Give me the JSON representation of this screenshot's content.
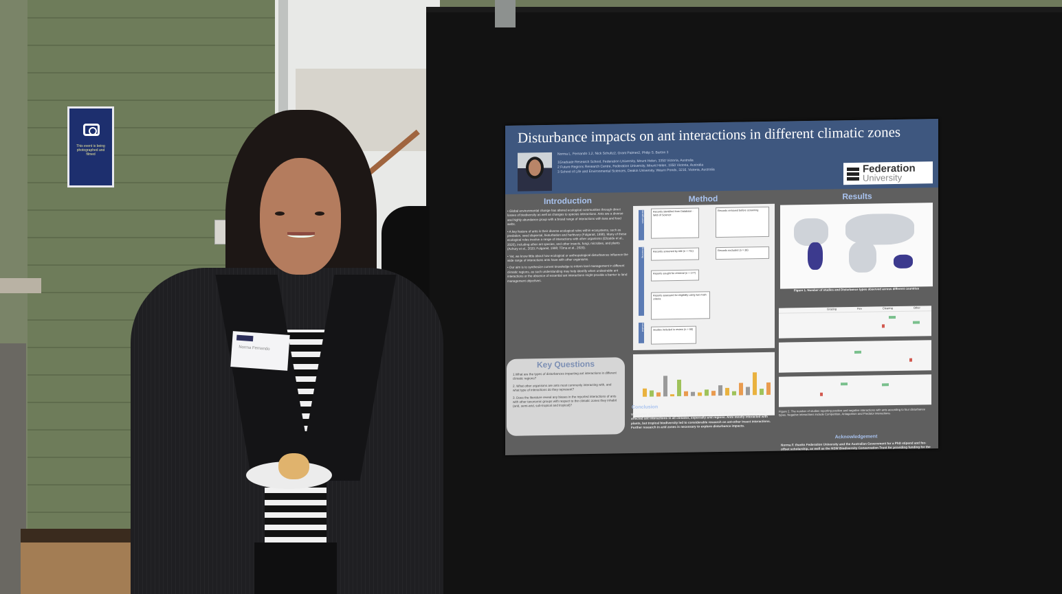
{
  "wall_sign": {
    "icon": "camera-icon",
    "text": "This event is being photographed and filmed"
  },
  "poster": {
    "title": "Disturbance impacts on ant interactions in different climatic zones",
    "authors": "Norma L. Fernando 1,2, Nick Schultz2, Grant Palmer2, Philip S. Barton 3",
    "affiliations": [
      "1Graduate Research School, Federation University, Mount Helen, 3350 Victoria, Australia",
      "2 Future Regions Research Centre, Federation University, Mount Helen, 3350 Victoria, Australia",
      "3 School of Life and Environmental Sciences, Deakin University, Waurn Ponds, 3216, Victoria, Australia"
    ],
    "logo": {
      "line1": "Federation",
      "line2": "University"
    },
    "introduction": {
      "heading": "Introduction",
      "paragraphs": [
        "• Global environmental change has altered ecological communities through direct losses of biodiversity as well as changes to species interactions. Ants are a diverse and highly abundance group with a broad range of interactions with taxa and food webs.",
        "• A key feature of ants is their diverse ecological roles within ecosystems, such as predation, seed dispersal, bioturbation and herbivory (Folgarait, 1998). Many of these ecological roles involve a range of interactions with other organisms (Elizalde et al., 2020), including other ant species, and other insects, fungi, microbes, and plants (Achury et al., 2020; Folgarait, 1998; Tůma et al., 2020).",
        "• Yet, we know little about how ecological or anthropological disturbances influence the wide range of interactions ants have with other organisms.",
        "• Our aim is to synthesize current knowledge to inform land management in different climatic regions, as such understanding may help identify when undesirable ant interactions or the absence of essential ant interactions might provide a barrier to land management objectives."
      ]
    },
    "key_questions": {
      "heading": "Key Questions",
      "items": [
        "1.What are the types of disturbances impacting ant interactions in different climatic regions?",
        "2. What other organisms are ants most commonly interacting with, and what type of interactions do they represent?",
        "3. Does the literature reveal any biases in the reported interactions of ants with other taxonomic groups with respect to the climatic zones they inhabit (arid, semi-arid, sub-tropical and tropical)?"
      ]
    },
    "method": {
      "heading": "Method",
      "side_labels": [
        "Identification",
        "Screening",
        "Included"
      ],
      "boxes": [
        "Records identified from Database - Web of Science",
        "Records removed before screening",
        "Records screened by title (n = 711)",
        "Records excluded (n = 38)",
        "Reports sought for retrieval (n = 177)",
        "Reports assessed for eligibility using two main criteria",
        "Studies included in review (n = 98)"
      ],
      "bar_levels": [
        0.2,
        0.15,
        0.1,
        0.5,
        0.05,
        0.4,
        0.12,
        0.1,
        0.08,
        0.15,
        0.12,
        0.25,
        0.18,
        0.1,
        0.3,
        0.2,
        0.55,
        0.15,
        0.3
      ]
    },
    "conclusion": {
      "heading": "Conclusion",
      "text": "Vegetation clearing mainly disturbed ant-plant interactions in the tropics. Fire and grazing affected ant interactions in all climates, especially arid regions. Ants mostly interacted with plants, but tropical biodiversity led to considerable research on ant-other insect interactions. Further research in arid zones is necessary to explore disturbance impacts."
    },
    "results": {
      "heading": "Results",
      "figure1_caption": "Figure 1. Number of studies and Disturbance types observed across different countries",
      "table_headers": [
        "Grazing",
        "Fire",
        "Clearing",
        "Other"
      ],
      "figure2_caption": "Figure 2. The number of studies reporting positive and negative interactions with ants according to four disturbance types. Negative interactions include Competition, Antagonism and Predator interactions."
    },
    "acknowledgement": {
      "heading": "Acknowledgement",
      "text": "Norma F. thanks Federation University and the Australian Government for a PhD stipend and fee-offset scholarship, as well as the NSW Biodiversity Conservation Trust for providing funding for the project."
    }
  },
  "name_tag": {
    "name": "Norma Fernando"
  }
}
